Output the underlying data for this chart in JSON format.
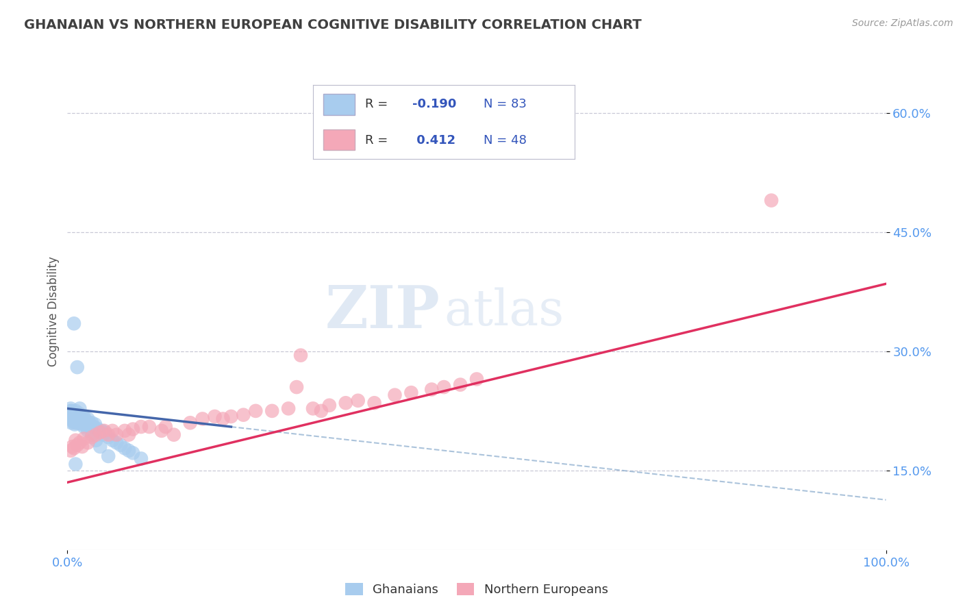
{
  "title": "GHANAIAN VS NORTHERN EUROPEAN COGNITIVE DISABILITY CORRELATION CHART",
  "source": "Source: ZipAtlas.com",
  "xlabel_ghanaians": "Ghanaians",
  "xlabel_northern": "Northern Europeans",
  "ylabel": "Cognitive Disability",
  "r_blue": -0.19,
  "n_blue": 83,
  "r_pink": 0.412,
  "n_pink": 48,
  "xlim": [
    0,
    1.0
  ],
  "ylim": [
    0.05,
    0.65
  ],
  "yticks": [
    0.15,
    0.3,
    0.45,
    0.6
  ],
  "ytick_labels": [
    "15.0%",
    "30.0%",
    "45.0%",
    "60.0%"
  ],
  "xticks": [
    0.0,
    1.0
  ],
  "xtick_labels": [
    "0.0%",
    "100.0%"
  ],
  "color_blue": "#A8CCEE",
  "color_pink": "#F4A8B8",
  "color_line_blue_solid": "#4466AA",
  "color_line_blue_dash": "#88AACC",
  "color_line_pink": "#E03060",
  "watermark_zip": "ZIP",
  "watermark_atlas": "atlas",
  "background_color": "#ffffff",
  "grid_color": "#BBBBCC",
  "title_color": "#404040",
  "legend_r_color": "#3355BB",
  "tick_color": "#5599EE",
  "blue_scatter_x": [
    0.003,
    0.004,
    0.004,
    0.005,
    0.005,
    0.005,
    0.006,
    0.006,
    0.007,
    0.007,
    0.008,
    0.008,
    0.009,
    0.009,
    0.01,
    0.01,
    0.01,
    0.011,
    0.011,
    0.012,
    0.012,
    0.013,
    0.013,
    0.014,
    0.014,
    0.015,
    0.015,
    0.016,
    0.016,
    0.017,
    0.018,
    0.018,
    0.019,
    0.02,
    0.02,
    0.021,
    0.022,
    0.023,
    0.024,
    0.025,
    0.026,
    0.027,
    0.028,
    0.03,
    0.032,
    0.034,
    0.036,
    0.038,
    0.04,
    0.042,
    0.044,
    0.046,
    0.05,
    0.055,
    0.06,
    0.065,
    0.07,
    0.075,
    0.08,
    0.09,
    0.004,
    0.005,
    0.006,
    0.007,
    0.008,
    0.009,
    0.01,
    0.011,
    0.012,
    0.013,
    0.014,
    0.015,
    0.016,
    0.018,
    0.02,
    0.025,
    0.03,
    0.035,
    0.04,
    0.05,
    0.008,
    0.012,
    0.01
  ],
  "blue_scatter_y": [
    0.22,
    0.225,
    0.218,
    0.215,
    0.222,
    0.21,
    0.218,
    0.212,
    0.22,
    0.215,
    0.218,
    0.212,
    0.215,
    0.208,
    0.22,
    0.215,
    0.21,
    0.218,
    0.212,
    0.215,
    0.21,
    0.218,
    0.212,
    0.215,
    0.21,
    0.218,
    0.213,
    0.215,
    0.21,
    0.212,
    0.215,
    0.208,
    0.212,
    0.218,
    0.21,
    0.215,
    0.212,
    0.208,
    0.21,
    0.215,
    0.21,
    0.205,
    0.208,
    0.21,
    0.205,
    0.208,
    0.203,
    0.2,
    0.198,
    0.2,
    0.195,
    0.198,
    0.192,
    0.188,
    0.185,
    0.182,
    0.178,
    0.175,
    0.172,
    0.165,
    0.228,
    0.225,
    0.222,
    0.22,
    0.218,
    0.222,
    0.225,
    0.22,
    0.215,
    0.218,
    0.222,
    0.228,
    0.215,
    0.21,
    0.205,
    0.2,
    0.195,
    0.188,
    0.18,
    0.168,
    0.335,
    0.28,
    0.158
  ],
  "pink_scatter_x": [
    0.004,
    0.006,
    0.008,
    0.01,
    0.012,
    0.015,
    0.018,
    0.02,
    0.025,
    0.03,
    0.035,
    0.04,
    0.045,
    0.05,
    0.055,
    0.06,
    0.07,
    0.08,
    0.09,
    0.1,
    0.115,
    0.13,
    0.15,
    0.165,
    0.18,
    0.2,
    0.215,
    0.23,
    0.25,
    0.27,
    0.285,
    0.3,
    0.32,
    0.34,
    0.355,
    0.375,
    0.4,
    0.42,
    0.445,
    0.46,
    0.48,
    0.5,
    0.86,
    0.28,
    0.12,
    0.075,
    0.19,
    0.31
  ],
  "pink_scatter_y": [
    0.175,
    0.18,
    0.178,
    0.188,
    0.182,
    0.185,
    0.18,
    0.19,
    0.185,
    0.192,
    0.195,
    0.198,
    0.2,
    0.195,
    0.2,
    0.195,
    0.2,
    0.202,
    0.205,
    0.205,
    0.2,
    0.195,
    0.21,
    0.215,
    0.218,
    0.218,
    0.22,
    0.225,
    0.225,
    0.228,
    0.295,
    0.228,
    0.232,
    0.235,
    0.238,
    0.235,
    0.245,
    0.248,
    0.252,
    0.255,
    0.258,
    0.265,
    0.49,
    0.255,
    0.205,
    0.195,
    0.215,
    0.225
  ],
  "pink_line_x0": 0.0,
  "pink_line_y0": 0.135,
  "pink_line_x1": 1.0,
  "pink_line_y1": 0.385,
  "blue_line_solid_x0": 0.0,
  "blue_line_solid_y0": 0.228,
  "blue_line_solid_x1": 0.2,
  "blue_line_solid_y1": 0.205,
  "blue_line_dash_x0": 0.2,
  "blue_line_dash_y0": 0.205,
  "blue_line_dash_x1": 1.0,
  "blue_line_dash_y1": 0.113
}
